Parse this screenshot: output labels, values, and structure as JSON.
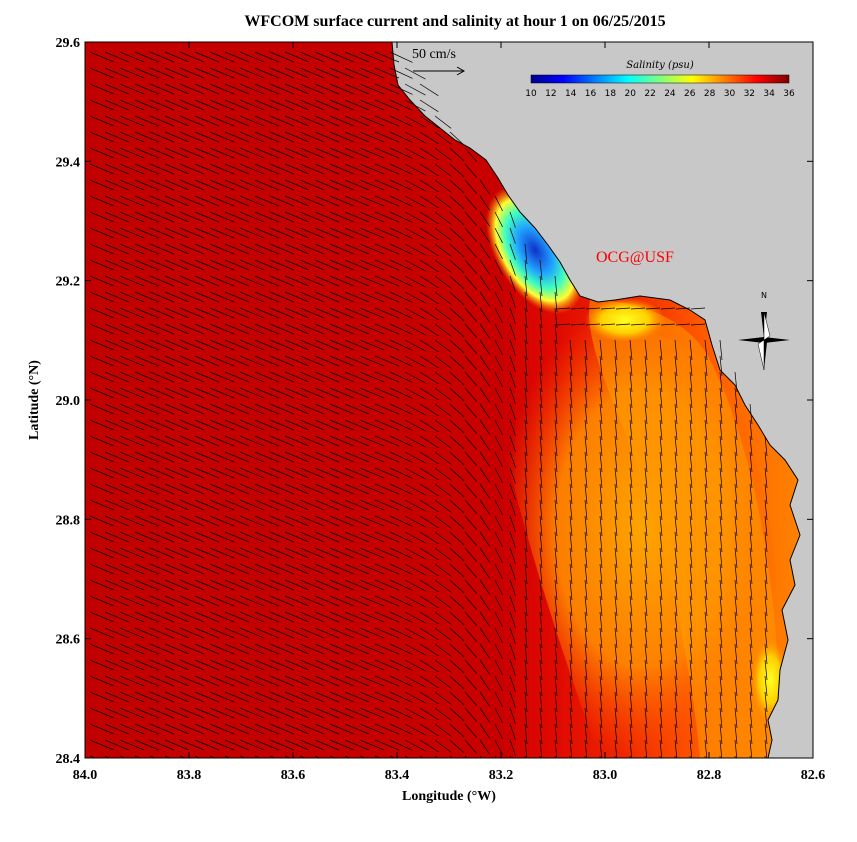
{
  "title": "WFCOM surface current and salinity at hour 1 on 06/25/2015",
  "x_axis_label": "Longitude (°W)",
  "y_axis_label": "Latitude (°N)",
  "x_ticks": [
    "84.0",
    "83.8",
    "83.6",
    "83.4",
    "83.2",
    "83.0",
    "82.8",
    "82.6"
  ],
  "y_ticks": [
    "29.6",
    "29.4",
    "29.2",
    "29.0",
    "28.8",
    "28.6",
    "28.4"
  ],
  "x_range": [
    84.0,
    82.6
  ],
  "y_range": [
    28.4,
    29.6
  ],
  "scale_vector_label": "50 cm/s",
  "scale_vector_value_cm_s": 50,
  "colorbar": {
    "title": "Salinity (psu)",
    "min": 10,
    "max": 36,
    "tick_labels": [
      "10",
      "12",
      "14",
      "16",
      "18",
      "20",
      "22",
      "24",
      "26",
      "28",
      "30",
      "32",
      "34",
      "36"
    ],
    "colormap": "jet"
  },
  "credit": "OCG@USF",
  "north_arrow_label": "N",
  "colors": {
    "land": "#c8c8c8",
    "salinity_high": "#c80000",
    "salinity_mid": "#ff8c00",
    "salinity_low": "#1e3cd2",
    "credit": "#ff0000"
  }
}
